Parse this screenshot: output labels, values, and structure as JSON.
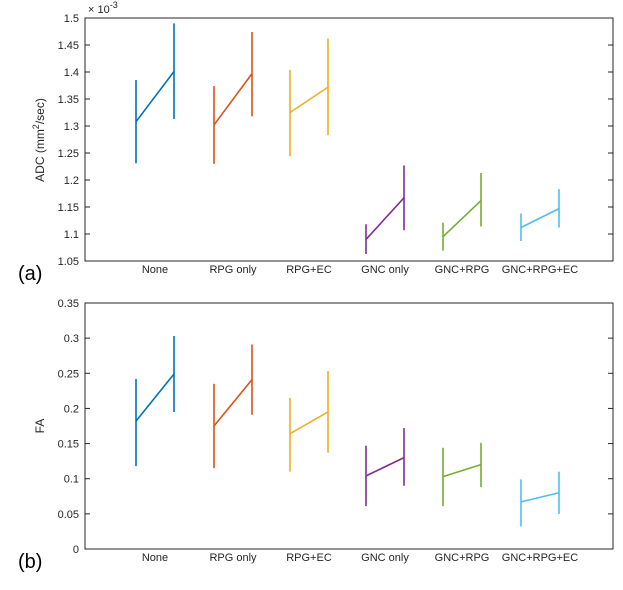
{
  "chart_data": [
    {
      "type": "line",
      "panel_label": "(a)",
      "ylabel_prefix": "ADC (mm",
      "ylabel_sup": "2",
      "ylabel_suffix": "/sec)",
      "exponent_base": "× 10",
      "exponent_power": "-3",
      "ylim": [
        1.05,
        1.5
      ],
      "yticks": [
        "1.05",
        "1.1",
        "1.15",
        "1.2",
        "1.25",
        "1.3",
        "1.35",
        "1.4",
        "1.45",
        "1.5"
      ],
      "ytick_values": [
        1.05,
        1.1,
        1.15,
        1.2,
        1.25,
        1.3,
        1.35,
        1.4,
        1.45,
        1.5
      ],
      "categories": [
        "None",
        "RPG only",
        "RPG+EC",
        "GNC only",
        "GNC+RPG",
        "GNC+RPG+EC"
      ],
      "series": [
        {
          "name": "None",
          "color": "#0072BD",
          "mean": [
            1.308,
            1.401
          ],
          "low": [
            1.231,
            1.313
          ],
          "high": [
            1.385,
            1.49
          ]
        },
        {
          "name": "RPG only",
          "color": "#D95319",
          "mean": [
            1.302,
            1.397
          ],
          "low": [
            1.23,
            1.318
          ],
          "high": [
            1.374,
            1.474
          ]
        },
        {
          "name": "RPG+EC",
          "color": "#EDB120",
          "mean": [
            1.325,
            1.372
          ],
          "low": [
            1.244,
            1.283
          ],
          "high": [
            1.404,
            1.462
          ]
        },
        {
          "name": "GNC only",
          "color": "#7E2F8E",
          "mean": [
            1.09,
            1.167
          ],
          "low": [
            1.063,
            1.107
          ],
          "high": [
            1.118,
            1.227
          ]
        },
        {
          "name": "GNC+RPG",
          "color": "#77AC30",
          "mean": [
            1.095,
            1.162
          ],
          "low": [
            1.069,
            1.114
          ],
          "high": [
            1.121,
            1.213
          ]
        },
        {
          "name": "GNC+RPG+EC",
          "color": "#4DBEEE",
          "mean": [
            1.112,
            1.147
          ],
          "low": [
            1.087,
            1.112
          ],
          "high": [
            1.138,
            1.183
          ]
        }
      ]
    },
    {
      "type": "line",
      "panel_label": "(b)",
      "ylabel": "FA",
      "ylim": [
        0,
        0.35
      ],
      "yticks": [
        "0",
        "0.05",
        "0.1",
        "0.15",
        "0.2",
        "0.25",
        "0.3",
        "0.35"
      ],
      "ytick_values": [
        0,
        0.05,
        0.1,
        0.15,
        0.2,
        0.25,
        0.3,
        0.35
      ],
      "categories": [
        "None",
        "RPG only",
        "RPG+EC",
        "GNC only",
        "GNC+RPG",
        "GNC+RPG+EC"
      ],
      "series": [
        {
          "name": "None",
          "color": "#0072BD",
          "mean": [
            0.182,
            0.249
          ],
          "low": [
            0.118,
            0.195
          ],
          "high": [
            0.242,
            0.303
          ]
        },
        {
          "name": "RPG only",
          "color": "#D95319",
          "mean": [
            0.175,
            0.241
          ],
          "low": [
            0.115,
            0.191
          ],
          "high": [
            0.235,
            0.291
          ]
        },
        {
          "name": "RPG+EC",
          "color": "#EDB120",
          "mean": [
            0.164,
            0.195
          ],
          "low": [
            0.11,
            0.137
          ],
          "high": [
            0.215,
            0.253
          ]
        },
        {
          "name": "GNC only",
          "color": "#7E2F8E",
          "mean": [
            0.104,
            0.13
          ],
          "low": [
            0.061,
            0.09
          ],
          "high": [
            0.147,
            0.172
          ]
        },
        {
          "name": "GNC+RPG",
          "color": "#77AC30",
          "mean": [
            0.103,
            0.12
          ],
          "low": [
            0.061,
            0.088
          ],
          "high": [
            0.144,
            0.151
          ]
        },
        {
          "name": "GNC+RPG+EC",
          "color": "#4DBEEE",
          "mean": [
            0.067,
            0.08
          ],
          "low": [
            0.032,
            0.05
          ],
          "high": [
            0.099,
            0.11
          ]
        }
      ]
    }
  ]
}
